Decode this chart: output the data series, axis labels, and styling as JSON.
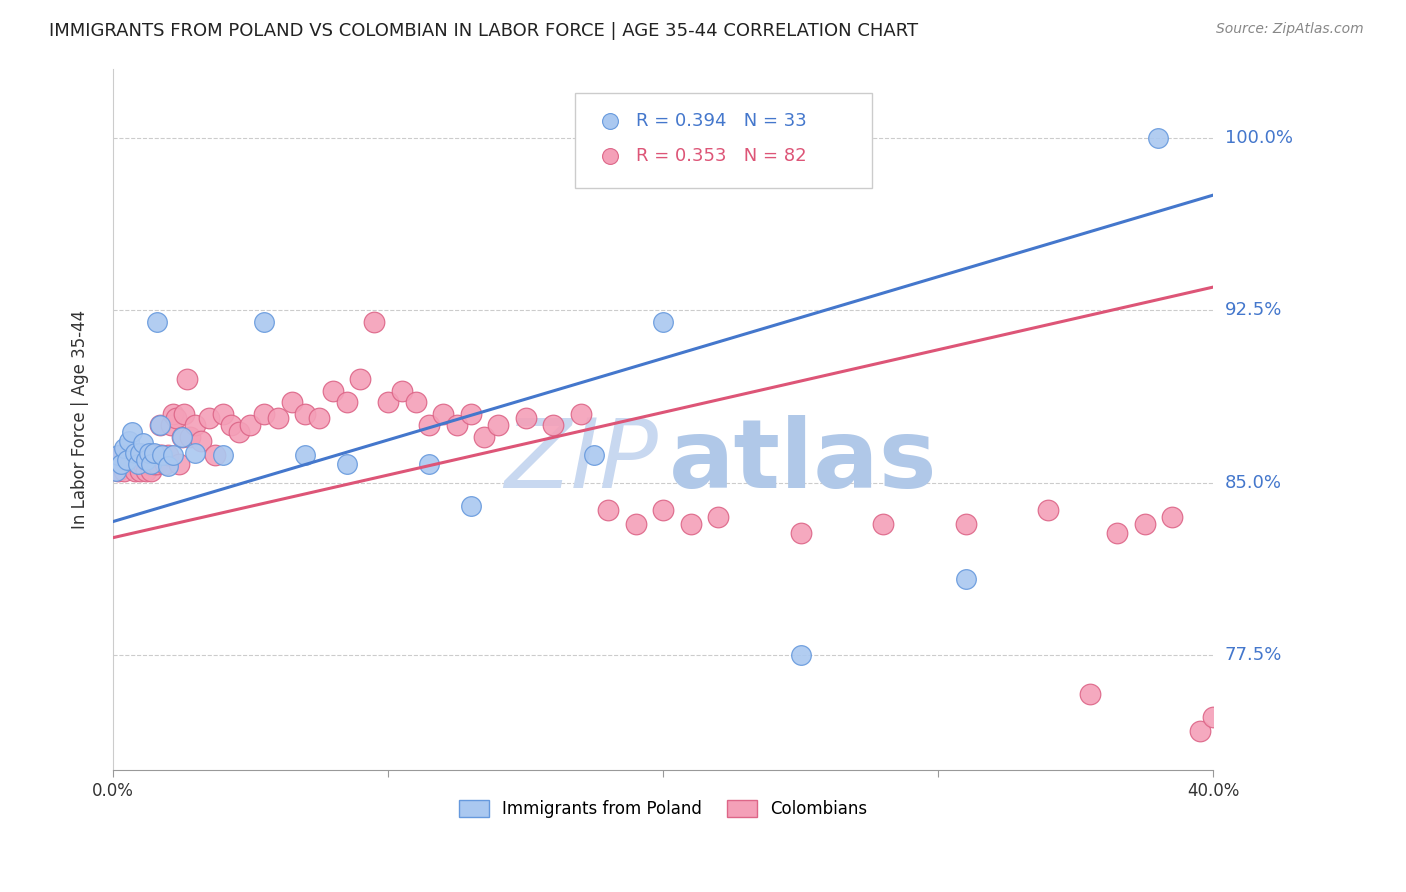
{
  "title": "IMMIGRANTS FROM POLAND VS COLOMBIAN IN LABOR FORCE | AGE 35-44 CORRELATION CHART",
  "source": "Source: ZipAtlas.com",
  "ylabel": "In Labor Force | Age 35-44",
  "ytick_labels_right": [
    "77.5%",
    "85.0%",
    "92.5%",
    "100.0%"
  ],
  "ytick_positions_right": [
    0.775,
    0.85,
    0.925,
    1.0
  ],
  "xlim": [
    0.0,
    0.4
  ],
  "ylim": [
    0.725,
    1.03
  ],
  "grid_color": "#cccccc",
  "poland_color": "#aac8f0",
  "colombia_color": "#f4a0b8",
  "poland_edge": "#6699dd",
  "colombia_edge": "#dd6688",
  "trend_blue": "#4477cc",
  "trend_pink": "#dd5577",
  "watermark_zip_color": "#c8d8f0",
  "watermark_atlas_color": "#b0c8e8",
  "legend_R_poland": "R = 0.394",
  "legend_N_poland": "N = 33",
  "legend_R_colombia": "R = 0.353",
  "legend_N_colombia": "N = 82",
  "trend_blue_x0": 0.0,
  "trend_blue_y0": 0.833,
  "trend_blue_x1": 0.4,
  "trend_blue_y1": 0.975,
  "trend_pink_x0": 0.0,
  "trend_pink_y0": 0.826,
  "trend_pink_x1": 0.4,
  "trend_pink_y1": 0.935,
  "poland_x": [
    0.001,
    0.002,
    0.003,
    0.004,
    0.005,
    0.006,
    0.007,
    0.008,
    0.009,
    0.01,
    0.011,
    0.012,
    0.013,
    0.014,
    0.015,
    0.016,
    0.017,
    0.018,
    0.02,
    0.022,
    0.025,
    0.03,
    0.04,
    0.055,
    0.07,
    0.085,
    0.115,
    0.13,
    0.175,
    0.2,
    0.25,
    0.31,
    0.38
  ],
  "poland_y": [
    0.855,
    0.862,
    0.858,
    0.865,
    0.86,
    0.868,
    0.872,
    0.863,
    0.858,
    0.863,
    0.867,
    0.86,
    0.863,
    0.858,
    0.863,
    0.92,
    0.875,
    0.862,
    0.857,
    0.862,
    0.87,
    0.863,
    0.862,
    0.92,
    0.862,
    0.858,
    0.858,
    0.84,
    0.862,
    0.92,
    0.775,
    0.808,
    1.0
  ],
  "colombia_x": [
    0.001,
    0.002,
    0.003,
    0.004,
    0.005,
    0.006,
    0.007,
    0.008,
    0.008,
    0.009,
    0.009,
    0.01,
    0.01,
    0.011,
    0.011,
    0.012,
    0.012,
    0.013,
    0.013,
    0.014,
    0.014,
    0.015,
    0.015,
    0.016,
    0.016,
    0.017,
    0.017,
    0.018,
    0.019,
    0.02,
    0.021,
    0.022,
    0.023,
    0.024,
    0.025,
    0.026,
    0.027,
    0.028,
    0.03,
    0.032,
    0.035,
    0.037,
    0.04,
    0.043,
    0.046,
    0.05,
    0.055,
    0.06,
    0.065,
    0.07,
    0.075,
    0.08,
    0.085,
    0.09,
    0.095,
    0.1,
    0.105,
    0.11,
    0.115,
    0.12,
    0.125,
    0.13,
    0.135,
    0.14,
    0.15,
    0.16,
    0.17,
    0.18,
    0.19,
    0.2,
    0.21,
    0.22,
    0.25,
    0.28,
    0.31,
    0.34,
    0.355,
    0.365,
    0.375,
    0.385,
    0.395,
    0.4
  ],
  "colombia_y": [
    0.86,
    0.855,
    0.862,
    0.855,
    0.858,
    0.862,
    0.858,
    0.86,
    0.855,
    0.862,
    0.858,
    0.858,
    0.855,
    0.862,
    0.858,
    0.855,
    0.862,
    0.858,
    0.862,
    0.855,
    0.862,
    0.858,
    0.862,
    0.858,
    0.862,
    0.862,
    0.875,
    0.862,
    0.858,
    0.862,
    0.875,
    0.88,
    0.878,
    0.858,
    0.87,
    0.88,
    0.895,
    0.87,
    0.875,
    0.868,
    0.878,
    0.862,
    0.88,
    0.875,
    0.872,
    0.875,
    0.88,
    0.878,
    0.885,
    0.88,
    0.878,
    0.89,
    0.885,
    0.895,
    0.92,
    0.885,
    0.89,
    0.885,
    0.875,
    0.88,
    0.875,
    0.88,
    0.87,
    0.875,
    0.878,
    0.875,
    0.88,
    0.838,
    0.832,
    0.838,
    0.832,
    0.835,
    0.828,
    0.832,
    0.832,
    0.838,
    0.758,
    0.828,
    0.832,
    0.835,
    0.742,
    0.748
  ]
}
